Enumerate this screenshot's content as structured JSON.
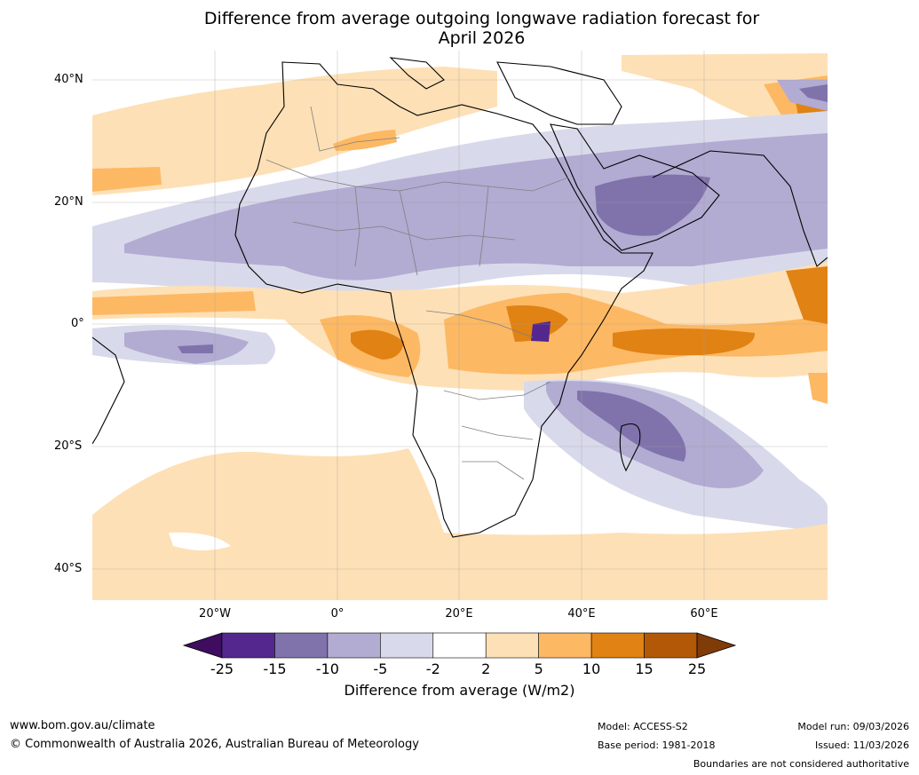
{
  "title_line1": "Difference from average outgoing longwave radiation forecast for",
  "title_line2": "April 2026",
  "lat_labels": [
    "40°N",
    "20°N",
    "0°",
    "20°S",
    "40°S"
  ],
  "lon_labels": [
    "20°W",
    "0°",
    "20°E",
    "40°E",
    "60°E"
  ],
  "colorbar": {
    "ticks": [
      "-25",
      "-15",
      "-10",
      "-5",
      "-2",
      "2",
      "5",
      "10",
      "15",
      "25"
    ],
    "colors": [
      "#3f0d5f",
      "#54278f",
      "#8073ac",
      "#b2abd2",
      "#d8daeb",
      "#ffffff",
      "#fee0b6",
      "#fdb863",
      "#e08214",
      "#b35806",
      "#7f3b08"
    ],
    "label": "Difference from average (W/m2)"
  },
  "footer": {
    "website": "www.bom.gov.au/climate",
    "copyright": "© Commonwealth of Australia 2026, Australian Bureau of Meteorology",
    "model": "Model: ACCESS-S2",
    "base_period": "Base period: 1981-2018",
    "model_run": "Model run: 09/03/2026",
    "issued": "Issued: 11/03/2026",
    "disclaimer": "Boundaries are not considered authoritative"
  }
}
